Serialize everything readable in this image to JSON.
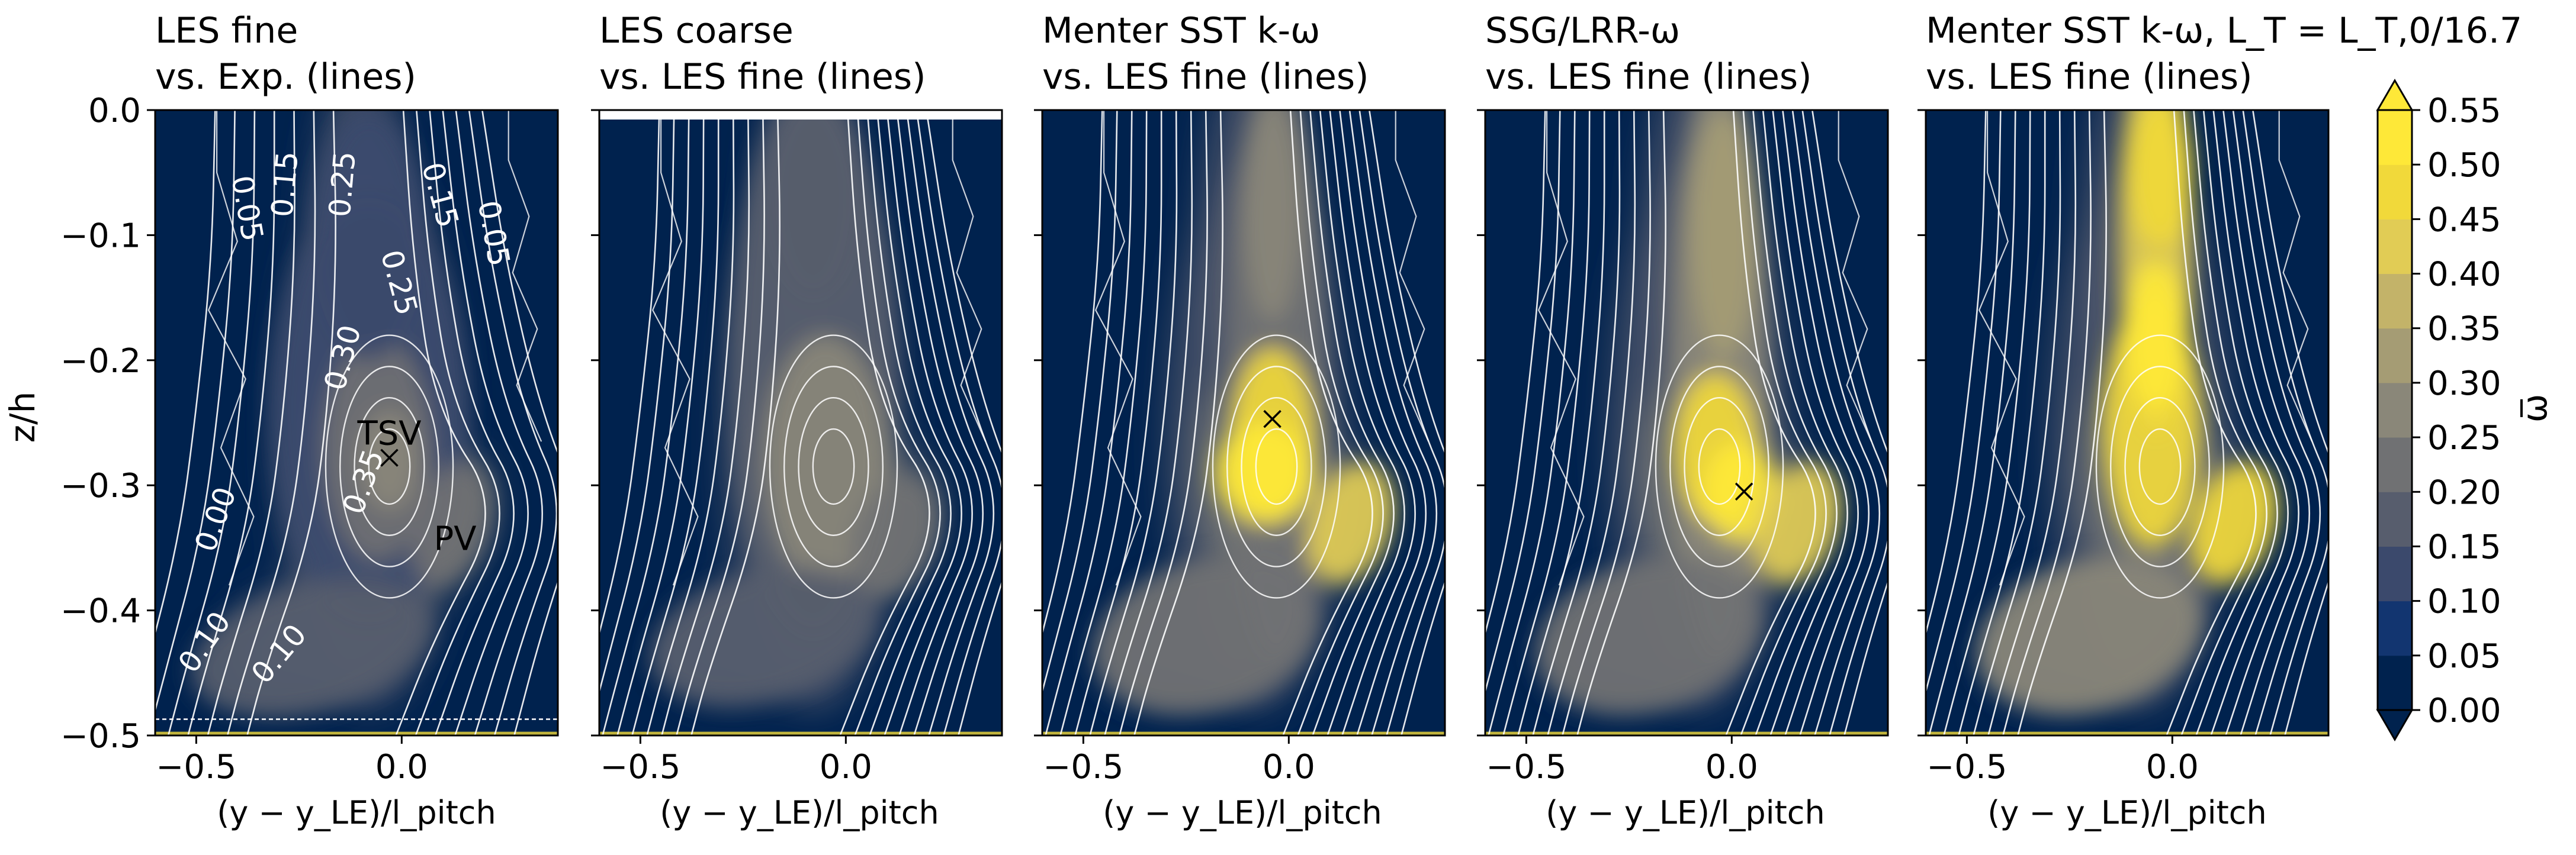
{
  "figure": {
    "panels": [
      {
        "title_line1": "LES fine",
        "title_line2": "vs. Exp. (lines)"
      },
      {
        "title_line1": "LES coarse",
        "title_line2": "vs. LES fine (lines)"
      },
      {
        "title_line1": "Menter SST k-ω",
        "title_line2": "vs. LES fine (lines)"
      },
      {
        "title_line1": "SSG/LRR-ω",
        "title_line2": "vs. LES fine (lines)"
      },
      {
        "title_line1": "Menter SST k-ω, L_T = L_T,0/16.7",
        "title_line2": "vs. LES fine (lines)"
      }
    ],
    "xlabel": "(y − y_LE)/l_pitch",
    "ylabel": "z/h",
    "colorbar_label": "ω̅"
  },
  "chart_data": {
    "type": "heatmap",
    "panel_count": 5,
    "xlim": [
      -0.6,
      0.38
    ],
    "ylim": [
      -0.5,
      0.0
    ],
    "x_ticks": [
      -0.5,
      0.0
    ],
    "x_tick_labels": [
      "−0.5",
      "0.0"
    ],
    "y_ticks": [
      0.0,
      -0.1,
      -0.2,
      -0.3,
      -0.4,
      -0.5
    ],
    "y_tick_labels": [
      "0.0",
      "−0.1",
      "−0.2",
      "−0.3",
      "−0.4",
      "−0.5"
    ],
    "colorbar": {
      "levels": [
        0.0,
        0.05,
        0.1,
        0.15,
        0.2,
        0.25,
        0.3,
        0.35,
        0.4,
        0.45,
        0.5,
        0.55
      ],
      "tick_labels": [
        "0.00",
        "0.05",
        "0.10",
        "0.15",
        "0.20",
        "0.25",
        "0.30",
        "0.35",
        "0.40",
        "0.45",
        "0.50",
        "0.55"
      ],
      "colors": [
        "#00224e",
        "#123570",
        "#3b496c",
        "#575d6d",
        "#707173",
        "#8a8779",
        "#a59c74",
        "#c3b369",
        "#e1cc55",
        "#f1d93a",
        "#fee838",
        "#fee838"
      ],
      "extend": "both"
    },
    "contour_labels_panel1": [
      "0.05",
      "0.15",
      "0.25",
      "0.15",
      "0.05",
      "0.25",
      "0.30",
      "0.35",
      "0.00",
      "0.10",
      "0.10"
    ],
    "annotations": [
      {
        "panel": 1,
        "text": "TSV",
        "x": -0.03,
        "y": -0.278
      },
      {
        "panel": 1,
        "text": "PV",
        "x": 0.13,
        "y": -0.362
      }
    ],
    "markers": [
      {
        "panel": 1,
        "symbol": "x",
        "x": -0.03,
        "y": -0.278
      },
      {
        "panel": 3,
        "symbol": "x",
        "x": -0.04,
        "y": -0.247
      },
      {
        "panel": 4,
        "symbol": "x",
        "x": 0.03,
        "y": -0.305
      }
    ],
    "dashed_line_panel1_z": -0.487
  }
}
